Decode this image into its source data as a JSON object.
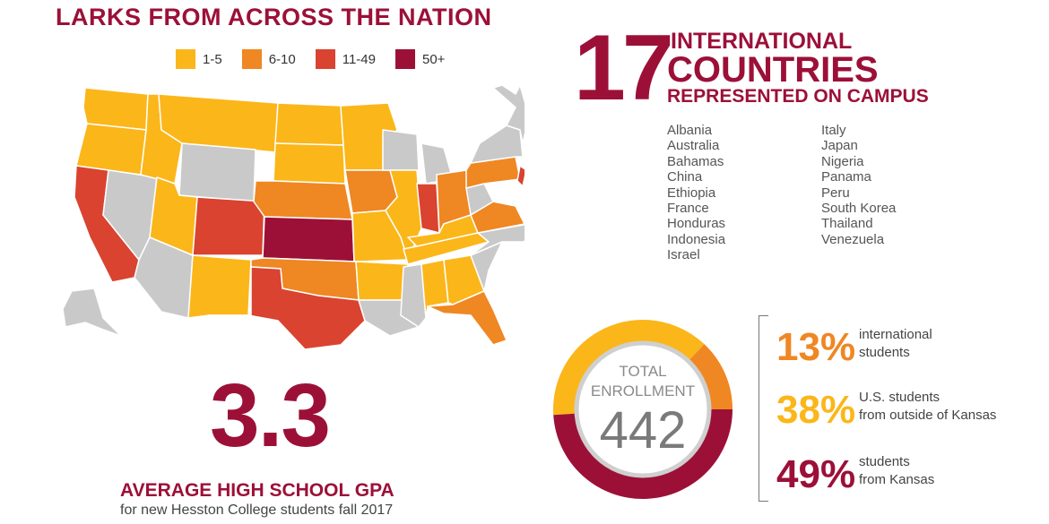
{
  "title": "LARKS FROM ACROSS THE NATION",
  "legend": [
    {
      "label": "1-5",
      "color": "#fbb61a"
    },
    {
      "label": "6-10",
      "color": "#ef8723"
    },
    {
      "label": "11-49",
      "color": "#d9432f"
    },
    {
      "label": "50+",
      "color": "#9c1038"
    }
  ],
  "countries": {
    "count": "17",
    "line1": "INTERNATIONAL",
    "line2": "COUNTRIES",
    "line3": "REPRESENTED ON CAMPUS",
    "list_left": [
      "Albania",
      "Australia",
      "Bahamas",
      "China",
      "Ethiopia",
      "France",
      "Honduras",
      "Indonesia",
      "Israel"
    ],
    "list_right": [
      "Italy",
      "Japan",
      "Nigeria",
      "Panama",
      "Peru",
      "South Korea",
      "Thailand",
      "Venezuela"
    ]
  },
  "gpa": {
    "value": "3.3",
    "label": "AVERAGE HIGH SCHOOL GPA",
    "sub": "for new Hesston College students fall 2017"
  },
  "enrollment": {
    "label1": "TOTAL",
    "label2": "ENROLLMENT",
    "total": "442",
    "segments": [
      {
        "pct_text": "13%",
        "line1": "international",
        "line2": "students",
        "value": 13,
        "color": "#ef8723"
      },
      {
        "pct_text": "38%",
        "line1": "U.S. students",
        "line2": "from outside of Kansas",
        "value": 38,
        "color": "#fbb61a"
      },
      {
        "pct_text": "49%",
        "line1": "students",
        "line2": "from Kansas",
        "value": 49,
        "color": "#9c1038"
      }
    ]
  }
}
